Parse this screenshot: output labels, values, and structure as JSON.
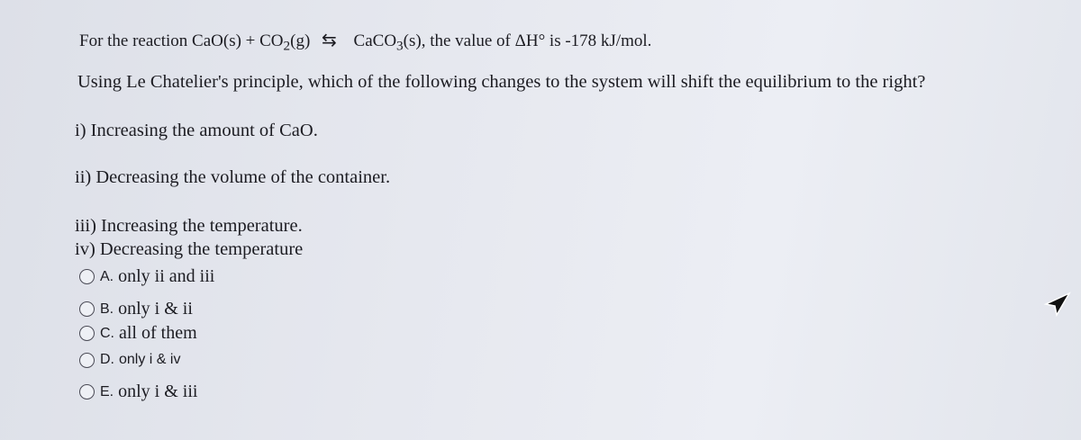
{
  "question": {
    "line1": {
      "prefix": "For the reaction CaO(s) + CO",
      "sub1": "2",
      "mid": "(g)",
      "arrow": "⇆",
      "product": "CaCO",
      "sub2": "3",
      "suffix": "(s), the value of ΔH° is -178 kJ/mol."
    },
    "line2": "Using Le Chatelier's principle, which of the following changes to the system will shift the equilibrium to the right?"
  },
  "statements": [
    "i) Increasing the amount of CaO.",
    "ii) Decreasing the volume of the container.",
    "iii) Increasing the temperature.",
    "iv) Decreasing the temperature"
  ],
  "options": [
    {
      "letter": "A.",
      "text": "only ii and iii"
    },
    {
      "letter": "B.",
      "text": "only i & ii"
    },
    {
      "letter": "C.",
      "text": "all of them"
    },
    {
      "letter": "D.",
      "text": "only i & iv"
    },
    {
      "letter": "E.",
      "text": "only i & iii"
    }
  ]
}
